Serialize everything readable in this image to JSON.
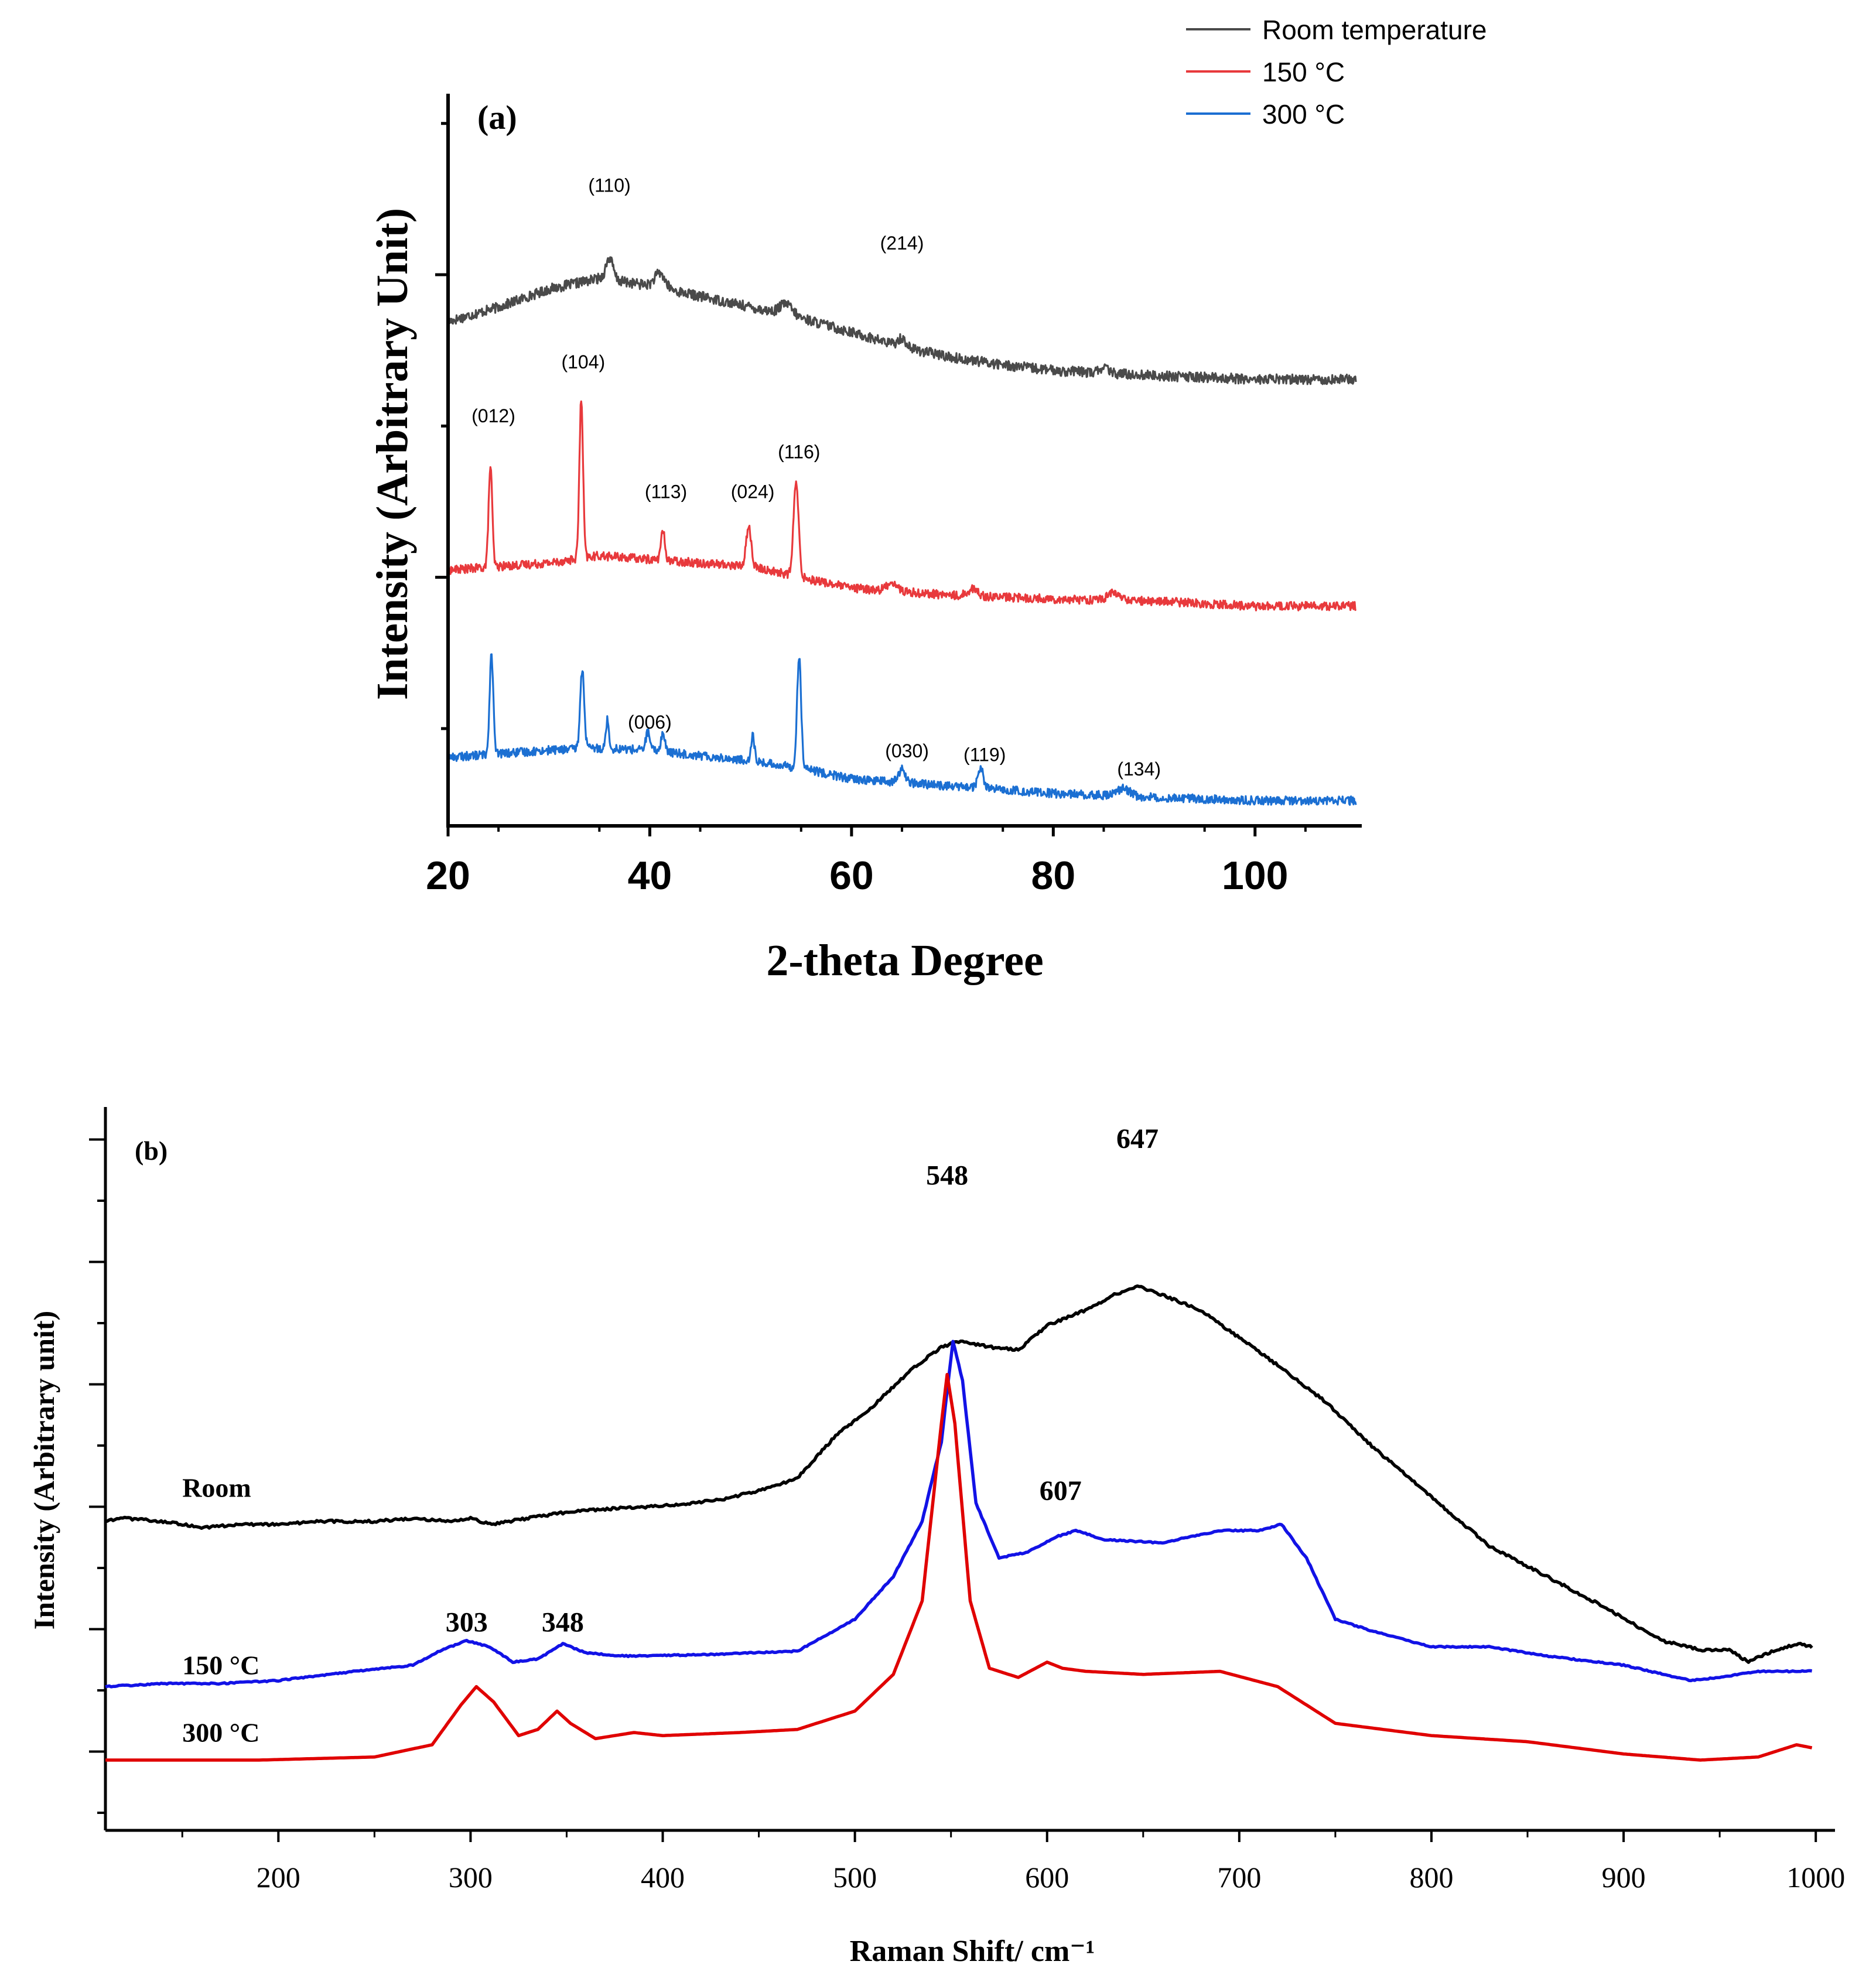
{
  "chart_data": [
    {
      "panel": "(a)",
      "type": "line",
      "xlabel": "2-theta Degree",
      "ylabel": "Intensity (Arbitrary Unit)",
      "xlim": [
        20,
        110
      ],
      "xticks": [
        20,
        40,
        60,
        80,
        100
      ],
      "ylim": [
        0,
        10
      ],
      "legend_position": "top-right",
      "series": [
        {
          "name": "Room temperature",
          "color": "#4a4a4a",
          "baseline": [
            [
              20,
              7.0
            ],
            [
              25,
              7.2
            ],
            [
              30,
              7.45
            ],
            [
              35,
              7.6
            ],
            [
              40,
              7.5
            ],
            [
              45,
              7.35
            ],
            [
              50,
              7.2
            ],
            [
              55,
              7.05
            ],
            [
              60,
              6.85
            ],
            [
              65,
              6.65
            ],
            [
              70,
              6.5
            ],
            [
              75,
              6.4
            ],
            [
              80,
              6.32
            ],
            [
              90,
              6.25
            ],
            [
              100,
              6.2
            ],
            [
              110,
              6.2
            ]
          ],
          "peaks": [
            [
              36,
              0.3,
              0.35
            ],
            [
              41,
              0.2,
              0.5
            ],
            [
              53.5,
              0.15,
              0.6
            ],
            [
              65,
              0.12,
              0.4
            ],
            [
              85,
              0.08,
              0.4
            ]
          ],
          "noise": 0.07
        },
        {
          "name": "150 °C",
          "color": "#e8393c",
          "baseline": [
            [
              20,
              3.55
            ],
            [
              30,
              3.65
            ],
            [
              35,
              3.75
            ],
            [
              40,
              3.7
            ],
            [
              50,
              3.6
            ],
            [
              55,
              3.45
            ],
            [
              60,
              3.3
            ],
            [
              70,
              3.2
            ],
            [
              80,
              3.15
            ],
            [
              90,
              3.12
            ],
            [
              100,
              3.05
            ],
            [
              110,
              3.05
            ]
          ],
          "peaks": [
            [
              24.2,
              1.4,
              0.18
            ],
            [
              33.2,
              2.2,
              0.18
            ],
            [
              41.3,
              0.4,
              0.2
            ],
            [
              49.8,
              0.55,
              0.25
            ],
            [
              54.5,
              1.3,
              0.25
            ],
            [
              64,
              0.12,
              0.5
            ],
            [
              72,
              0.1,
              0.5
            ],
            [
              86,
              0.1,
              0.6
            ]
          ],
          "noise": 0.06
        },
        {
          "name": "300 °C",
          "color": "#1b6fd2",
          "baseline": [
            [
              20,
              0.95
            ],
            [
              30,
              1.05
            ],
            [
              35,
              1.08
            ],
            [
              40,
              1.05
            ],
            [
              50,
              0.9
            ],
            [
              55,
              0.8
            ],
            [
              60,
              0.65
            ],
            [
              70,
              0.55
            ],
            [
              80,
              0.45
            ],
            [
              90,
              0.4
            ],
            [
              100,
              0.35
            ],
            [
              110,
              0.35
            ]
          ],
          "peaks": [
            [
              24.3,
              1.4,
              0.18
            ],
            [
              33.3,
              1.1,
              0.2
            ],
            [
              35.8,
              0.4,
              0.15
            ],
            [
              39.8,
              0.25,
              0.2
            ],
            [
              41.3,
              0.25,
              0.2
            ],
            [
              50.2,
              0.35,
              0.18
            ],
            [
              54.8,
              1.55,
              0.2
            ],
            [
              65,
              0.18,
              0.35
            ],
            [
              72.8,
              0.3,
              0.25
            ],
            [
              87,
              0.1,
              0.6
            ]
          ],
          "noise": 0.06
        }
      ],
      "annotations": [
        {
          "text": "(110)",
          "x": 36,
          "y": 8.8
        },
        {
          "text": "(214)",
          "x": 65,
          "y": 8.0
        },
        {
          "text": "(012)",
          "x": 24.5,
          "y": 5.6
        },
        {
          "text": "(104)",
          "x": 33.4,
          "y": 6.35
        },
        {
          "text": "(113)",
          "x": 41.6,
          "y": 4.55
        },
        {
          "text": "(024)",
          "x": 50.2,
          "y": 4.55
        },
        {
          "text": "(116)",
          "x": 54.8,
          "y": 5.1
        },
        {
          "text": "(006)",
          "x": 40,
          "y": 1.35
        },
        {
          "text": "(030)",
          "x": 65.5,
          "y": 0.95
        },
        {
          "text": "(119)",
          "x": 73.2,
          "y": 0.9
        },
        {
          "text": "(134)",
          "x": 88.5,
          "y": 0.7
        }
      ]
    },
    {
      "panel": "(b)",
      "type": "line",
      "xlabel": "Raman Shift/ cm⁻¹",
      "ylabel": "Intensity (Arbitrary unit)",
      "xlim": [
        110,
        1010
      ],
      "xticks": [
        200,
        300,
        400,
        500,
        600,
        700,
        800,
        900,
        1000
      ],
      "ylim": [
        0,
        10
      ],
      "series": [
        {
          "name": "Room",
          "color": "#000000",
          "points": [
            [
              110,
              3.9
            ],
            [
              120,
              3.95
            ],
            [
              140,
              3.9
            ],
            [
              160,
              3.8
            ],
            [
              180,
              3.85
            ],
            [
              200,
              3.85
            ],
            [
              220,
              3.9
            ],
            [
              250,
              3.9
            ],
            [
              270,
              3.95
            ],
            [
              290,
              3.9
            ],
            [
              300,
              3.95
            ],
            [
              310,
              3.85
            ],
            [
              330,
              3.95
            ],
            [
              350,
              4.05
            ],
            [
              370,
              4.1
            ],
            [
              400,
              4.15
            ],
            [
              430,
              4.25
            ],
            [
              450,
              4.4
            ],
            [
              470,
              4.6
            ],
            [
              490,
              5.3
            ],
            [
              510,
              5.8
            ],
            [
              530,
              6.4
            ],
            [
              545,
              6.75
            ],
            [
              555,
              6.85
            ],
            [
              570,
              6.75
            ],
            [
              585,
              6.7
            ],
            [
              600,
              7.1
            ],
            [
              620,
              7.35
            ],
            [
              635,
              7.6
            ],
            [
              647,
              7.75
            ],
            [
              660,
              7.6
            ],
            [
              680,
              7.35
            ],
            [
              700,
              6.9
            ],
            [
              720,
              6.45
            ],
            [
              745,
              5.85
            ],
            [
              770,
              5.1
            ],
            [
              800,
              4.3
            ],
            [
              830,
              3.5
            ],
            [
              860,
              3.0
            ],
            [
              890,
              2.5
            ],
            [
              920,
              1.95
            ],
            [
              940,
              1.8
            ],
            [
              955,
              1.8
            ],
            [
              965,
              1.6
            ],
            [
              975,
              1.75
            ],
            [
              990,
              1.9
            ],
            [
              998,
              1.85
            ]
          ],
          "noise": 0.02
        },
        {
          "name": "150 °C",
          "color": "#1212e6",
          "points": [
            [
              110,
              1.2
            ],
            [
              140,
              1.25
            ],
            [
              170,
              1.25
            ],
            [
              200,
              1.3
            ],
            [
              240,
              1.45
            ],
            [
              270,
              1.55
            ],
            [
              285,
              1.8
            ],
            [
              298,
              1.95
            ],
            [
              310,
              1.85
            ],
            [
              322,
              1.6
            ],
            [
              335,
              1.65
            ],
            [
              348,
              1.9
            ],
            [
              360,
              1.75
            ],
            [
              380,
              1.7
            ],
            [
              420,
              1.72
            ],
            [
              470,
              1.78
            ],
            [
              500,
              2.3
            ],
            [
              520,
              3.0
            ],
            [
              535,
              3.9
            ],
            [
              545,
              5.2
            ],
            [
              551,
              6.85
            ],
            [
              556,
              6.2
            ],
            [
              563,
              4.2
            ],
            [
              575,
              3.3
            ],
            [
              590,
              3.4
            ],
            [
              605,
              3.65
            ],
            [
              615,
              3.75
            ],
            [
              630,
              3.6
            ],
            [
              660,
              3.55
            ],
            [
              690,
              3.75
            ],
            [
              710,
              3.75
            ],
            [
              722,
              3.85
            ],
            [
              735,
              3.3
            ],
            [
              750,
              2.3
            ],
            [
              770,
              2.1
            ],
            [
              800,
              1.85
            ],
            [
              830,
              1.85
            ],
            [
              860,
              1.7
            ],
            [
              900,
              1.55
            ],
            [
              935,
              1.3
            ],
            [
              950,
              1.35
            ],
            [
              970,
              1.45
            ],
            [
              998,
              1.45
            ]
          ],
          "noise": 0.01
        },
        {
          "name": "300 °C",
          "color": "#e00000",
          "points": [
            [
              110,
              0.0
            ],
            [
              150,
              0.0
            ],
            [
              190,
              0.0
            ],
            [
              250,
              0.05
            ],
            [
              280,
              0.25
            ],
            [
              295,
              0.9
            ],
            [
              303,
              1.2
            ],
            [
              312,
              0.95
            ],
            [
              325,
              0.4
            ],
            [
              335,
              0.5
            ],
            [
              345,
              0.8
            ],
            [
              352,
              0.6
            ],
            [
              365,
              0.35
            ],
            [
              385,
              0.45
            ],
            [
              400,
              0.4
            ],
            [
              440,
              0.45
            ],
            [
              470,
              0.5
            ],
            [
              500,
              0.8
            ],
            [
              520,
              1.4
            ],
            [
              535,
              2.6
            ],
            [
              545,
              5.5
            ],
            [
              548,
              6.3
            ],
            [
              552,
              5.5
            ],
            [
              560,
              2.6
            ],
            [
              570,
              1.5
            ],
            [
              585,
              1.35
            ],
            [
              600,
              1.6
            ],
            [
              608,
              1.5
            ],
            [
              620,
              1.45
            ],
            [
              650,
              1.4
            ],
            [
              690,
              1.45
            ],
            [
              720,
              1.2
            ],
            [
              750,
              0.6
            ],
            [
              800,
              0.4
            ],
            [
              850,
              0.3
            ],
            [
              900,
              0.1
            ],
            [
              940,
              0.0
            ],
            [
              970,
              0.05
            ],
            [
              990,
              0.25
            ],
            [
              998,
              0.2
            ]
          ],
          "noise": 0.0
        }
      ],
      "annotations": [
        {
          "text": "647",
          "x": 647,
          "y": 10.0
        },
        {
          "text": "548",
          "x": 548,
          "y": 9.4
        },
        {
          "text": "607",
          "x": 607,
          "y": 4.25
        },
        {
          "text": "303",
          "x": 298,
          "y": 2.1
        },
        {
          "text": "348",
          "x": 348,
          "y": 2.1
        }
      ],
      "series_labels": [
        {
          "text": "Room",
          "x": 150,
          "y": 4.3
        },
        {
          "text": "150 °C",
          "x": 150,
          "y": 1.4
        },
        {
          "text": "300 °C",
          "x": 150,
          "y": 0.3
        }
      ]
    }
  ]
}
